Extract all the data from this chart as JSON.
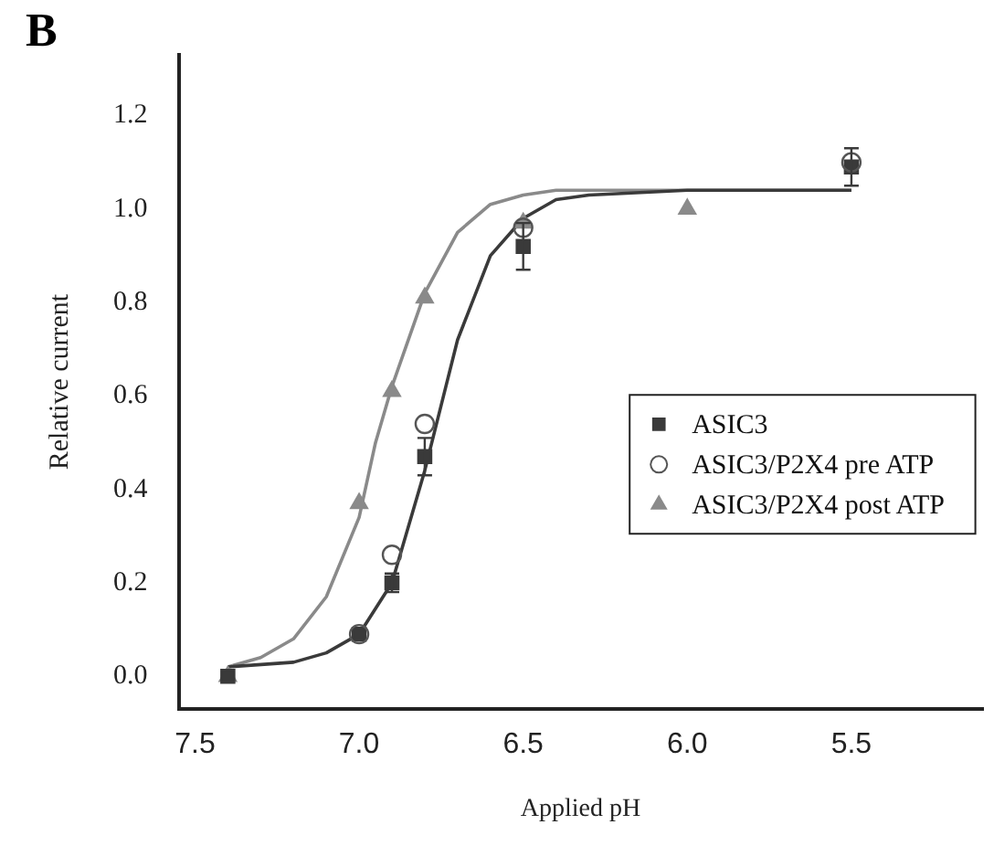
{
  "chart_data": {
    "type": "scatter",
    "title": "B",
    "xlabel": "Applied pH",
    "ylabel": "Relative current",
    "xlim": [
      7.55,
      5.1
    ],
    "xticks": [
      {
        "value": 7.5,
        "label": "7.5"
      },
      {
        "value": 7.0,
        "label": "7.0"
      },
      {
        "value": 6.5,
        "label": "6.5"
      },
      {
        "value": 6.0,
        "label": "6.0"
      },
      {
        "value": 5.5,
        "label": "5.5"
      }
    ],
    "ylim": [
      -0.07,
      1.33
    ],
    "yticks": [
      {
        "value": 0,
        "label": "0.0"
      },
      {
        "value": 0.2,
        "label": "0.2"
      },
      {
        "value": 0.4,
        "label": "0.4"
      },
      {
        "value": 0.6,
        "label": "0.6"
      },
      {
        "value": 0.8,
        "label": "0.8"
      },
      {
        "value": 1.0,
        "label": "1.0"
      },
      {
        "value": 1.2,
        "label": "1.2"
      }
    ],
    "grid": false,
    "legend": "right",
    "series": [
      {
        "type": "line",
        "color": "#3a3a3a",
        "x": [
          7.4,
          7.2,
          7.1,
          7.0,
          6.9,
          6.8,
          6.75,
          6.7,
          6.6,
          6.5,
          6.4,
          6.3,
          6.0,
          5.5
        ],
        "values": [
          0.02,
          0.03,
          0.05,
          0.09,
          0.2,
          0.44,
          0.58,
          0.72,
          0.9,
          0.98,
          1.02,
          1.03,
          1.04,
          1.04
        ]
      },
      {
        "type": "line",
        "color": "#8a8a8a",
        "x": [
          7.4,
          7.3,
          7.2,
          7.1,
          7.0,
          6.95,
          6.9,
          6.8,
          6.7,
          6.6,
          6.5,
          6.4,
          6.0,
          5.5
        ],
        "values": [
          0.02,
          0.04,
          0.08,
          0.17,
          0.34,
          0.5,
          0.62,
          0.82,
          0.95,
          1.01,
          1.03,
          1.04,
          1.04,
          1.04
        ]
      },
      {
        "name": "ASIC3",
        "color": "#3a3a3a",
        "marker": "square",
        "x": [
          7.4,
          7.0,
          6.9,
          6.8,
          6.5,
          5.5
        ],
        "values": [
          0.0,
          0.09,
          0.2,
          0.47,
          0.92,
          1.09
        ],
        "errors": [
          null,
          null,
          0.02,
          0.04,
          0.05,
          0.04
        ]
      },
      {
        "name": "ASIC3/P2X4 pre ATP",
        "color": "#555555",
        "marker": "circle",
        "x": [
          7.0,
          6.9,
          6.8,
          6.5,
          5.5
        ],
        "values": [
          0.09,
          0.26,
          0.54,
          0.96,
          1.1
        ]
      },
      {
        "name": "ASIC3/P2X4 post ATP",
        "color": "#8a8a8a",
        "marker": "triangle",
        "x": [
          7.4,
          7.0,
          6.9,
          6.8,
          6.5,
          6.0
        ],
        "values": [
          0.0,
          0.37,
          0.61,
          0.81,
          0.97,
          1.0
        ]
      }
    ]
  }
}
